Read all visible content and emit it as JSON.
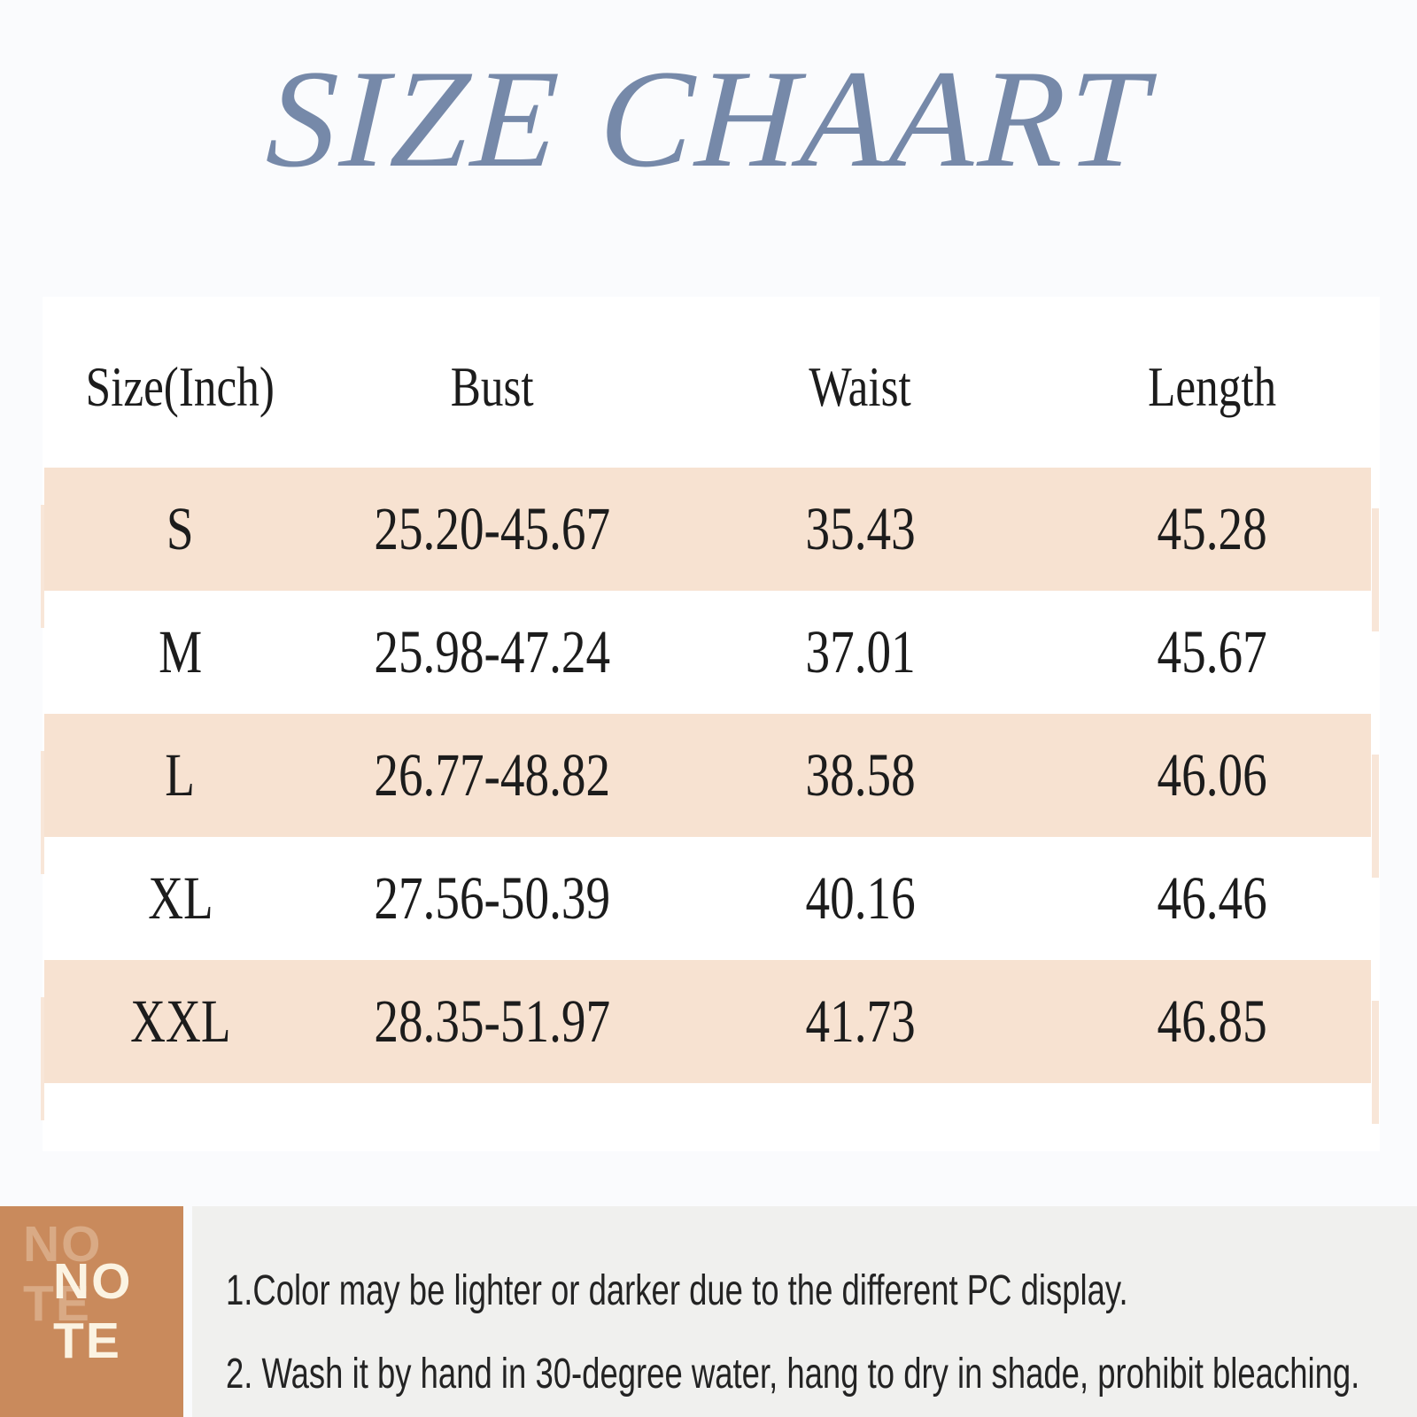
{
  "chart_data": {
    "type": "table",
    "title": "SIZE CHAART",
    "columns": [
      "Size(Inch)",
      "Bust",
      "Waist",
      "Length"
    ],
    "rows": [
      [
        "S",
        "25.20-45.67",
        "35.43",
        "45.28"
      ],
      [
        "M",
        "25.98-47.24",
        "37.01",
        "45.67"
      ],
      [
        "L",
        "26.77-48.82",
        "38.58",
        "46.06"
      ],
      [
        "XL",
        "27.56-50.39",
        "40.16",
        "46.46"
      ],
      [
        "XXL",
        "28.35-51.97",
        "41.73",
        "46.85"
      ]
    ],
    "units": "Inch",
    "layout_hints": {
      "striped_rows": [
        "S",
        "L",
        "XXL"
      ],
      "grid": "off"
    }
  },
  "note": {
    "word_lines": [
      "NO",
      "TE"
    ],
    "items": [
      "1.Color may be lighter or darker due to the different PC display.",
      "2. Wash it by hand in 30-degree water, hang to dry in shade, prohibit bleaching."
    ]
  },
  "colors": {
    "page-bg": "#fafbfd",
    "card-bg": "#ffffff",
    "title-color": "#7689a9",
    "row-accent": "#f7e2d1",
    "text-color": "#1c1c1c",
    "note-block": "#c98a5c",
    "note-word": "#fbf3e2",
    "note-word-ghost": "#d9aa85",
    "notes-bg": "#f0f0ee",
    "notes-text": "#232323"
  }
}
